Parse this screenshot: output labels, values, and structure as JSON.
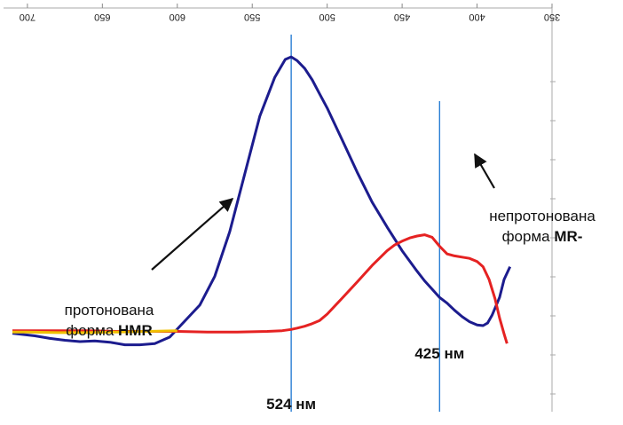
{
  "chart_data": {
    "type": "line",
    "title": "",
    "xlabel": "",
    "ylabel": "",
    "orientation": "rotated-180",
    "xlim": [
      350,
      710
    ],
    "x_ticks": [
      "350",
      "400",
      "450",
      "500",
      "550",
      "600",
      "650",
      "700"
    ],
    "y_axis": "right, tick marks without labels",
    "grid": false,
    "series": [
      {
        "color": "#1c1c8e",
        "x": [
          378,
          382,
          385,
          390,
          393,
          396,
          400,
          405,
          410,
          415,
          420,
          425,
          430,
          435,
          440,
          450,
          460,
          470,
          480,
          490,
          500,
          505,
          510,
          515,
          520,
          524,
          528,
          535,
          545,
          555,
          565,
          575,
          585,
          595,
          605,
          615,
          625,
          635,
          645,
          655,
          665,
          675,
          685,
          695,
          710
        ],
        "y": [
          -1.0,
          -0.8,
          -0.52,
          -0.24,
          -0.12,
          -0.08,
          -0.09,
          -0.14,
          -0.22,
          -0.32,
          -0.43,
          -0.52,
          -0.65,
          -0.78,
          -0.93,
          -1.25,
          -1.62,
          -2.01,
          -2.48,
          -2.98,
          -3.48,
          -3.7,
          -3.92,
          -4.1,
          -4.22,
          -4.28,
          -4.24,
          -3.96,
          -3.35,
          -2.45,
          -1.55,
          -0.85,
          -0.4,
          -0.15,
          0.1,
          0.2,
          0.22,
          0.22,
          0.18,
          0.16,
          0.17,
          0.15,
          0.12,
          0.08,
          0.04
        ]
      },
      {
        "color": "#e52222",
        "x": [
          380,
          382,
          385,
          388,
          392,
          396,
          400,
          405,
          410,
          415,
          420,
          425,
          430,
          435,
          440,
          445,
          450,
          455,
          460,
          470,
          480,
          490,
          500,
          505,
          510,
          515,
          520,
          524,
          530,
          540,
          560,
          580,
          600,
          620,
          640,
          660,
          680,
          700,
          710
        ],
        "y": [
          0.2,
          0.05,
          -0.2,
          -0.5,
          -0.8,
          -1.0,
          -1.08,
          -1.13,
          -1.15,
          -1.17,
          -1.2,
          -1.32,
          -1.46,
          -1.5,
          -1.48,
          -1.45,
          -1.4,
          -1.34,
          -1.25,
          -1.02,
          -0.76,
          -0.51,
          -0.26,
          -0.16,
          -0.11,
          -0.07,
          -0.04,
          -0.02,
          0.0,
          0.01,
          0.02,
          0.02,
          0.01,
          0.01,
          0.01,
          0.0,
          0.0,
          0.0,
          0.0
        ]
      },
      {
        "color": "#f0c000",
        "x": [
          600,
          620,
          640,
          660,
          680,
          700,
          710
        ],
        "y": [
          0.0,
          0.01,
          0.02,
          0.03,
          0.03,
          0.02,
          0.02
        ]
      }
    ],
    "markers": [
      {
        "x": 524,
        "label": "524 нм",
        "color": "#2a7fd4"
      },
      {
        "x": 425,
        "label": "425 нм",
        "color": "#2a7fd4"
      }
    ],
    "annotations": [
      {
        "line1": "протонована",
        "line2_normal": "форма ",
        "line2_bold": "HMR"
      },
      {
        "line1": "непротонована",
        "line2_normal": "форма ",
        "line2_bold": "MR-"
      }
    ]
  }
}
